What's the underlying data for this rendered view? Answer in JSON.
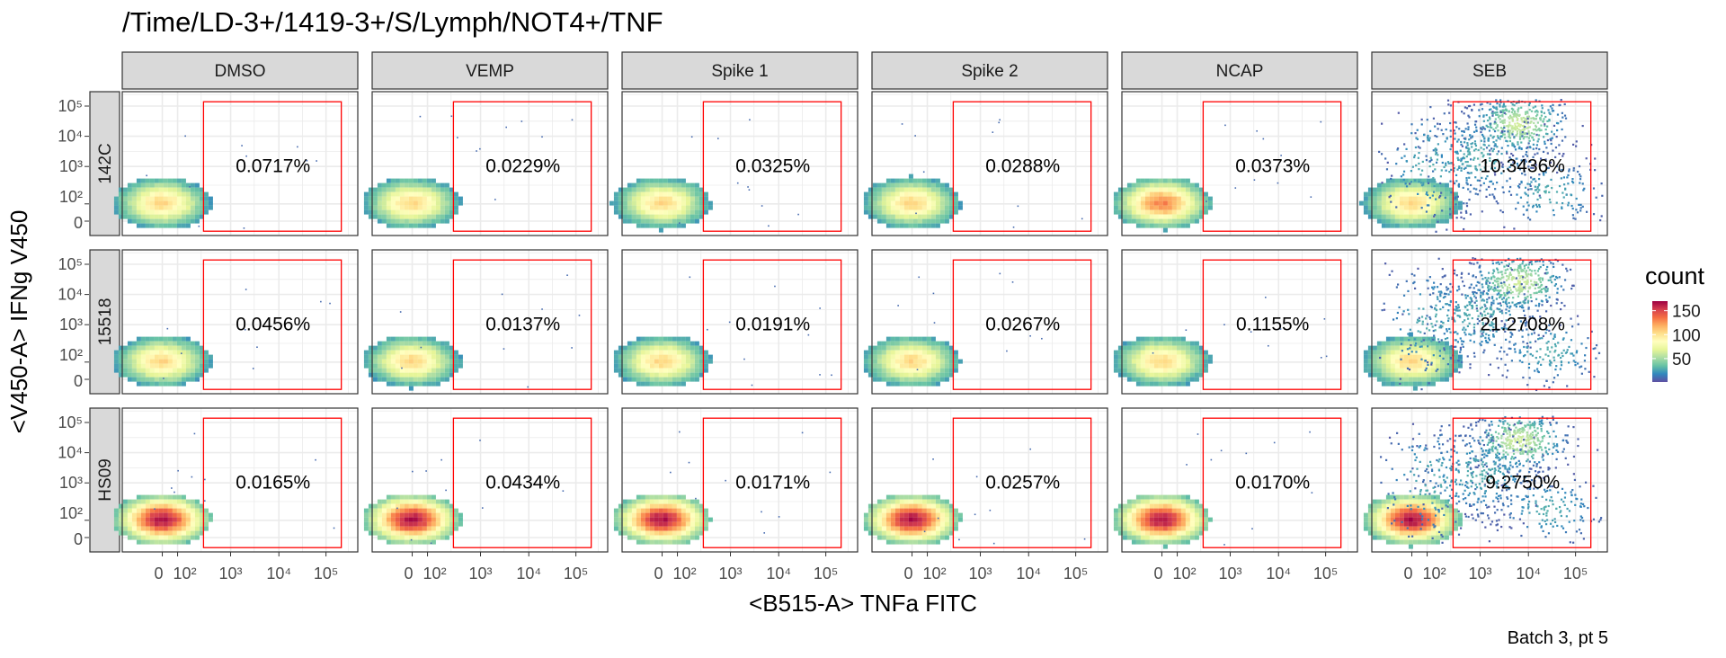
{
  "title": "/Time/LD-3+/1419-3+/S/Lymph/NOT4+/TNF",
  "caption": "Batch 3, pt 5",
  "chart_data": {
    "type": "heatmap",
    "subtype": "faceted 2D density (flow cytometry) with rectangular gate",
    "title": "/Time/LD-3+/1419-3+/S/Lymph/NOT4+/TNF",
    "xlabel": "<B515-A> TNFa FITC",
    "ylabel": "<V450-A> IFNg V450",
    "x_scale": "biexponential (logicle)",
    "y_scale": "biexponential (logicle)",
    "x_tick_labels": [
      "0",
      "10^2",
      "10^3",
      "10^4",
      "10^5"
    ],
    "y_tick_labels": [
      "0",
      "10^2",
      "10^3",
      "10^4",
      "10^5"
    ],
    "columns": [
      "DMSO",
      "VEMP",
      "Spike 1",
      "Spike 2",
      "NCAP",
      "SEB"
    ],
    "rows": [
      "142C",
      "15518",
      "HS09"
    ],
    "gate": {
      "shape": "rectangle",
      "color": "#ff0000",
      "x_range_approx": [
        250,
        200000
      ],
      "y_range_approx": [
        -100,
        200000
      ]
    },
    "percent_in_gate": [
      [
        "0.0717%",
        "0.0229%",
        "0.0325%",
        "0.0288%",
        "0.0373%",
        "10.3436%"
      ],
      [
        "0.0456%",
        "0.0137%",
        "0.0191%",
        "0.0267%",
        "0.1155%",
        "21.2708%"
      ],
      [
        "0.0165%",
        "0.0434%",
        "0.0171%",
        "0.0257%",
        "0.0170%",
        "9.2750%"
      ]
    ],
    "legend": {
      "title": "count",
      "ticks": [
        "150",
        "100",
        "50"
      ],
      "tick_values": [
        150,
        100,
        50
      ],
      "range": [
        1,
        170
      ],
      "colors": [
        "#5e4fa2",
        "#3288bd",
        "#66c2a5",
        "#abdda4",
        "#e6f598",
        "#ffffbf",
        "#fee08b",
        "#fdae61",
        "#f46d43",
        "#d53e4f",
        "#9e0142"
      ],
      "position": "right"
    },
    "grid": true,
    "panel_background": "#ffffff",
    "strip_background": "#d9d9d9",
    "grid_color": "#ebebeb"
  }
}
